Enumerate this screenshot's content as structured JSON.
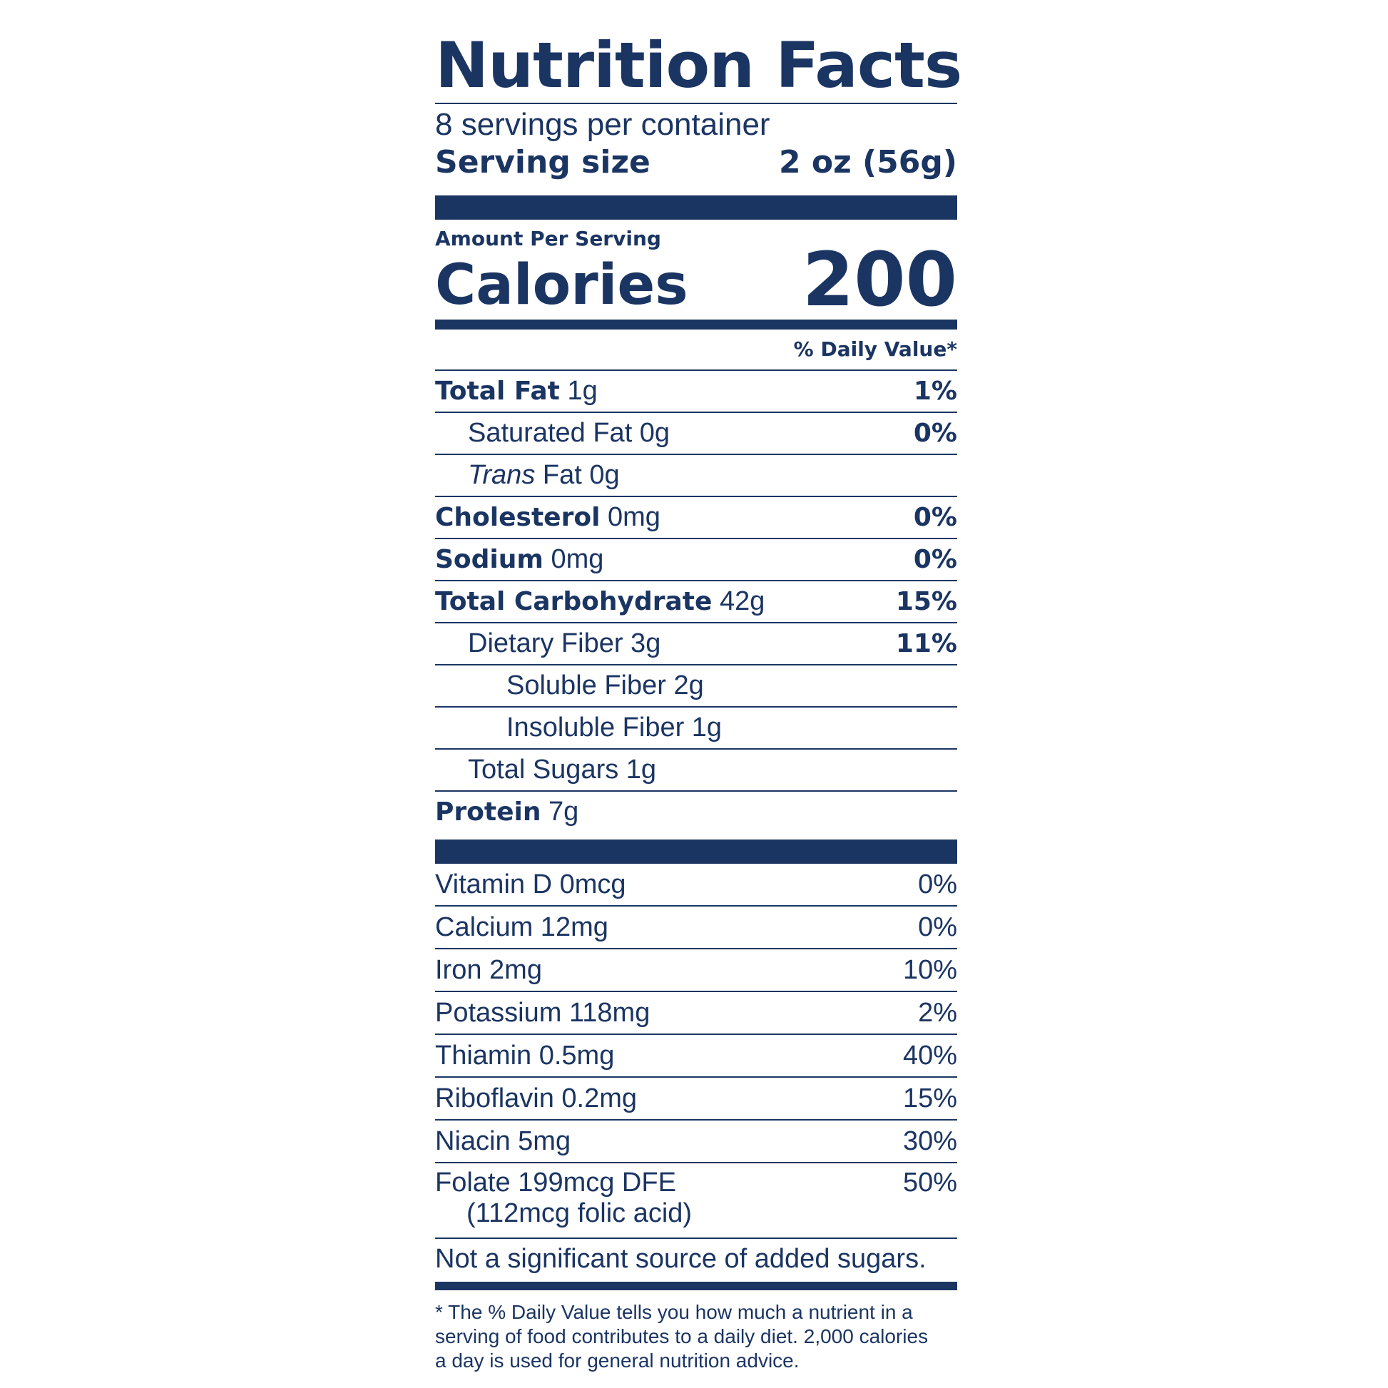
{
  "title": "Nutrition Facts",
  "servings_per_container": "8 servings per container",
  "serving_size": {
    "label": "Serving size",
    "value": "2 oz (56g)"
  },
  "amount_per_serving": "Amount Per Serving",
  "calories": {
    "label": "Calories",
    "value": "200"
  },
  "daily_value_header": "% Daily Value*",
  "nutrients": [
    {
      "name": "Total Fat",
      "amount": "1g",
      "dv": "1%"
    },
    {
      "name": "Saturated Fat 0g",
      "dv": "0%"
    },
    {
      "name_italic": "Trans",
      "name": "Fat 0g"
    },
    {
      "name": "Cholesterol",
      "amount": "0mg",
      "dv": "0%"
    },
    {
      "name": "Sodium",
      "amount": "0mg",
      "dv": "0%"
    },
    {
      "name": "Total Carbohydrate",
      "amount": "42g",
      "dv": "15%"
    },
    {
      "name": "Dietary Fiber 3g",
      "dv": "11%"
    },
    {
      "name": "Soluble Fiber 2g"
    },
    {
      "name": "Insoluble Fiber 1g"
    },
    {
      "name": "Total Sugars 1g"
    },
    {
      "name": "Protein",
      "amount": "7g"
    }
  ],
  "vitamins": [
    {
      "name": "Vitamin D 0mcg",
      "dv": "0%"
    },
    {
      "name": "Calcium 12mg",
      "dv": "0%"
    },
    {
      "name": "Iron 2mg",
      "dv": "10%"
    },
    {
      "name": "Potassium 118mg",
      "dv": "2%"
    },
    {
      "name": "Thiamin 0.5mg",
      "dv": "40%"
    },
    {
      "name": "Riboflavin 0.2mg",
      "dv": "15%"
    },
    {
      "name": "Niacin 5mg",
      "dv": "30%"
    }
  ],
  "folate": {
    "name": "Folate 199mcg DFE",
    "sub": "(112mcg folic acid)",
    "dv": "50%"
  },
  "added_sugars_note": "Not a significant source of added sugars.",
  "footnote": "* The % Daily Value tells you how much a nutrient in a serving of food contributes to a daily diet. 2,000 calories a day is used for general nutrition advice."
}
